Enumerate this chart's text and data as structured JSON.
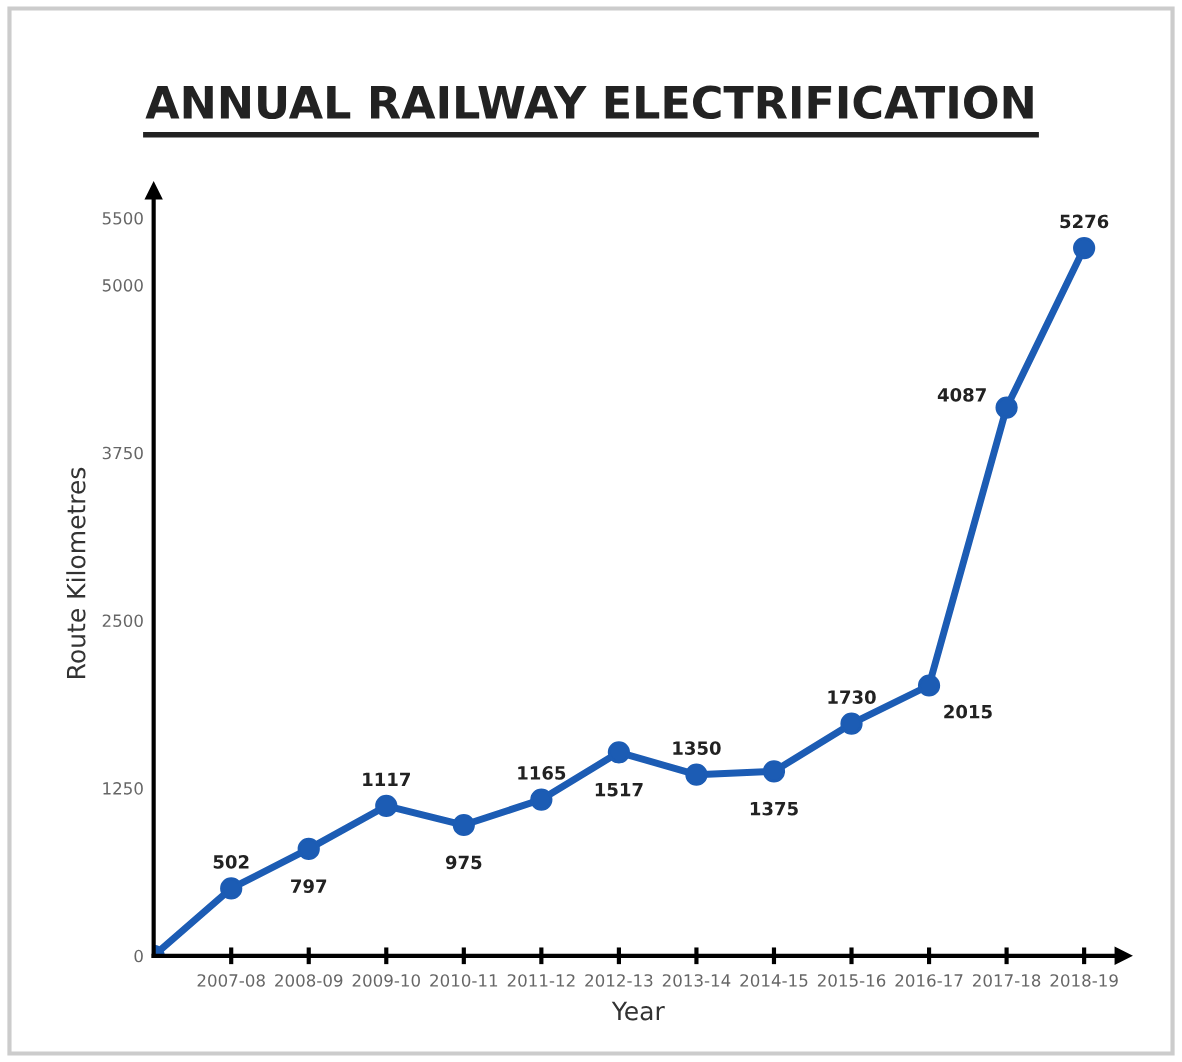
{
  "chart_data": {
    "type": "line",
    "title": "ANNUAL RAILWAY ELECTRIFICATION",
    "xlabel": "Year",
    "ylabel": "Route Kilometres",
    "categories": [
      null,
      "2007-08",
      "2008-09",
      "2009-10",
      "2010-11",
      "2011-12",
      "2012-13",
      "2013-14",
      "2014-15",
      "2015-16",
      "2016-17",
      "2017-18",
      "2018-19"
    ],
    "series": [
      {
        "color": "#1c5cb4",
        "values": [
          0,
          502,
          797,
          1117,
          975,
          1165,
          1517,
          1350,
          1375,
          1730,
          2015,
          4087,
          5276
        ]
      }
    ],
    "value_labels": [
      null,
      "502",
      "797",
      "1117",
      "975",
      "1165",
      "1517",
      "1350",
      "1375",
      "1730",
      "2015",
      "4087",
      "5276"
    ],
    "ylim": [
      0,
      5700
    ],
    "yticks": [
      0,
      1250,
      2500,
      3750,
      5000,
      5500
    ],
    "marker": "circle",
    "line_style": "solid",
    "grid": false,
    "legend": false
  }
}
